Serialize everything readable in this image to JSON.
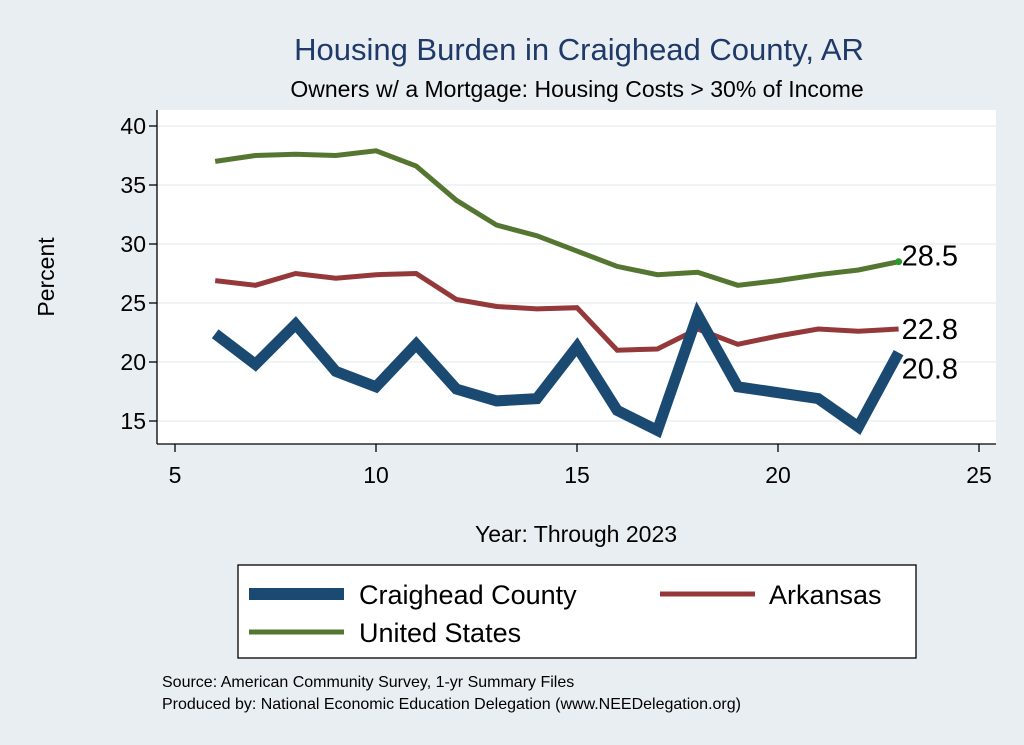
{
  "chart_data": {
    "type": "line",
    "title": "Housing Burden in Craighead County, AR",
    "subtitle": "Owners w/ a Mortgage: Housing Costs > 30% of Income",
    "xlabel": "Year: Through 2023",
    "ylabel": "Percent",
    "xlim": [
      5,
      25
    ],
    "ylim": [
      13,
      41
    ],
    "xticks": [
      5,
      10,
      15,
      20,
      25
    ],
    "yticks": [
      15,
      20,
      25,
      30,
      35,
      40
    ],
    "grid": true,
    "legend_position": "bottom",
    "series": [
      {
        "name": "Craighead County",
        "color": "#1a4a72",
        "x": [
          6,
          7,
          8,
          9,
          10,
          11,
          12,
          13,
          14,
          15,
          16,
          17,
          18,
          19,
          20,
          21,
          22,
          23
        ],
        "y": [
          22.4,
          19.8,
          23.2,
          19.2,
          17.9,
          21.5,
          17.7,
          16.7,
          16.9,
          21.3,
          15.9,
          14.2,
          24.0,
          17.9,
          17.4,
          16.9,
          14.5,
          20.8
        ],
        "end_label": "20.8"
      },
      {
        "name": "Arkansas",
        "color": "#953839",
        "x": [
          6,
          7,
          8,
          9,
          10,
          11,
          12,
          13,
          14,
          15,
          16,
          17,
          18,
          19,
          20,
          21,
          22,
          23
        ],
        "y": [
          26.9,
          26.5,
          27.5,
          27.1,
          27.4,
          27.5,
          25.3,
          24.7,
          24.5,
          24.6,
          21.0,
          21.1,
          22.8,
          21.5,
          22.2,
          22.8,
          22.6,
          22.8
        ],
        "end_label": "22.8"
      },
      {
        "name": "United States",
        "color": "#557631",
        "x": [
          6,
          7,
          8,
          9,
          10,
          11,
          12,
          13,
          14,
          15,
          16,
          17,
          18,
          19,
          20,
          21,
          22,
          23
        ],
        "y": [
          37.0,
          37.5,
          37.6,
          37.5,
          37.9,
          36.6,
          33.7,
          31.6,
          30.7,
          29.4,
          28.1,
          27.4,
          27.6,
          26.5,
          26.9,
          27.4,
          27.8,
          28.5
        ],
        "end_label": "28.5"
      }
    ],
    "notes": [
      "Source: American Community Survey, 1-yr Summary Files",
      "Produced by: National Economic Education Delegation (www.NEEDelegation.org)"
    ]
  }
}
